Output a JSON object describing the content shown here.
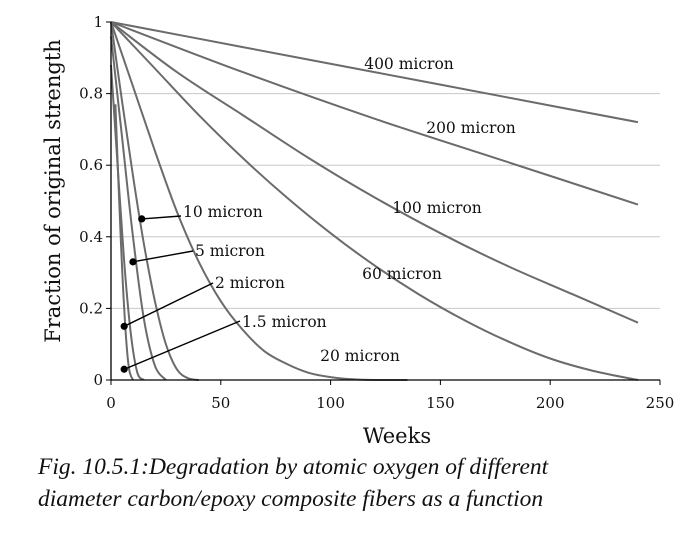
{
  "chart_data": {
    "type": "line",
    "xlabel": "Weeks",
    "ylabel": "Fraction of original strength",
    "xlim": [
      0,
      250
    ],
    "ylim": [
      0,
      1
    ],
    "x_ticks": [
      "0",
      "50",
      "100",
      "150",
      "200",
      "250"
    ],
    "y_ticks": [
      "0",
      "0.2",
      "0.4",
      "0.6",
      "0.8",
      "1"
    ],
    "grid": "horizontal",
    "series": [
      {
        "name": "400 micron",
        "x": [
          0,
          60,
          120,
          180,
          240
        ],
        "y": [
          1.0,
          0.93,
          0.86,
          0.79,
          0.72
        ]
      },
      {
        "name": "200 micron",
        "x": [
          0,
          60,
          120,
          180,
          240
        ],
        "y": [
          1.0,
          0.86,
          0.73,
          0.61,
          0.49
        ]
      },
      {
        "name": "100 micron",
        "x": [
          0,
          30,
          60,
          90,
          120,
          150,
          180,
          210,
          240
        ],
        "y": [
          1.0,
          0.86,
          0.74,
          0.62,
          0.51,
          0.41,
          0.32,
          0.24,
          0.16
        ]
      },
      {
        "name": "60 micron",
        "x": [
          0,
          20,
          40,
          60,
          80,
          100,
          120,
          140,
          160,
          180,
          200,
          220,
          240
        ],
        "y": [
          1.0,
          0.87,
          0.74,
          0.62,
          0.51,
          0.41,
          0.32,
          0.24,
          0.17,
          0.11,
          0.06,
          0.025,
          0.0
        ]
      },
      {
        "name": "20 micron",
        "x": [
          0,
          10,
          20,
          30,
          40,
          50,
          60,
          70,
          80,
          90,
          100,
          110,
          120,
          135
        ],
        "y": [
          1.0,
          0.82,
          0.64,
          0.47,
          0.33,
          0.22,
          0.14,
          0.08,
          0.045,
          0.02,
          0.008,
          0.002,
          0.0,
          0.0
        ]
      },
      {
        "name": "10 micron",
        "x": [
          0,
          5,
          10,
          15,
          20,
          25,
          30,
          35,
          40
        ],
        "y": [
          1.0,
          0.78,
          0.57,
          0.38,
          0.22,
          0.1,
          0.03,
          0.005,
          0.0
        ]
      },
      {
        "name": "5 micron",
        "x": [
          0,
          5,
          10,
          15,
          20,
          25
        ],
        "y": [
          0.96,
          0.68,
          0.4,
          0.17,
          0.04,
          0.0
        ]
      },
      {
        "name": "2 micron",
        "x": [
          0,
          3,
          6,
          9,
          12,
          15
        ],
        "y": [
          0.88,
          0.6,
          0.33,
          0.13,
          0.02,
          0.0
        ]
      },
      {
        "name": "1.5 micron",
        "x": [
          2,
          4,
          6,
          8,
          10
        ],
        "y": [
          0.77,
          0.46,
          0.2,
          0.04,
          0.0
        ]
      }
    ],
    "annotations": [
      {
        "text": "400 micron",
        "series": "400 micron",
        "style": "inline"
      },
      {
        "text": "200 micron",
        "series": "200 micron",
        "style": "inline"
      },
      {
        "text": "100 micron",
        "series": "100 micron",
        "style": "inline"
      },
      {
        "text": "60 micron",
        "series": "60 micron",
        "style": "inline"
      },
      {
        "text": "20 micron",
        "series": "20 micron",
        "style": "inline"
      },
      {
        "text": "10 micron",
        "series": "10 micron",
        "style": "leader",
        "point": [
          14,
          0.45
        ]
      },
      {
        "text": "5 micron",
        "series": "5 micron",
        "style": "leader",
        "point": [
          10,
          0.33
        ]
      },
      {
        "text": "2 micron",
        "series": "2 micron",
        "style": "leader",
        "point": [
          6,
          0.15
        ]
      },
      {
        "text": "1.5 micron",
        "series": "1.5 micron",
        "style": "leader",
        "point": [
          6,
          0.03
        ]
      }
    ]
  },
  "caption": {
    "line1": "Fig. 10.5.1:Degradation by atomic oxygen of different",
    "line2": "diameter carbon/epoxy composite fibers as a function"
  },
  "colors": {
    "curve": "#6b6b6b",
    "grid": "#c8c8c8",
    "axis": "#000000",
    "text": "#111111"
  }
}
